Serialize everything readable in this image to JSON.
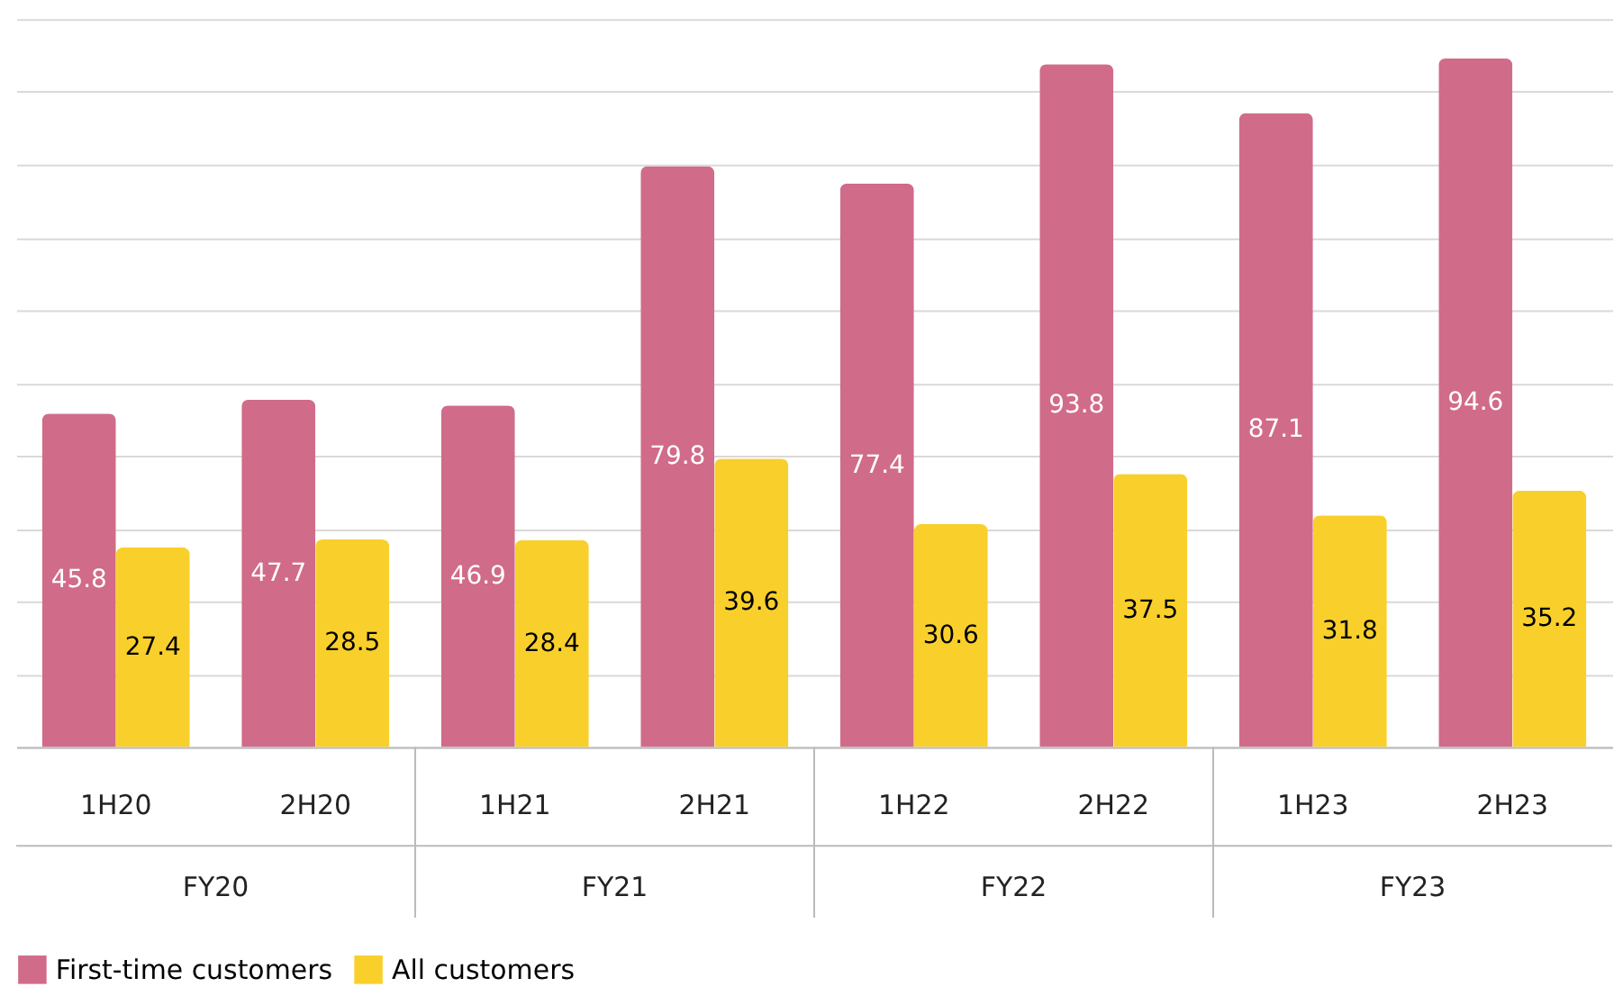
{
  "chart_data": {
    "type": "bar",
    "categories": [
      "1H20",
      "2H20",
      "1H21",
      "2H21",
      "1H22",
      "2H22",
      "1H23",
      "2H23"
    ],
    "series": [
      {
        "name": "First-time customers",
        "color": "#d16b8a",
        "values": [
          45.8,
          47.7,
          46.9,
          79.8,
          77.4,
          93.8,
          87.1,
          94.6
        ]
      },
      {
        "name": "All customers",
        "color": "#f9d02b",
        "values": [
          27.4,
          28.5,
          28.4,
          39.6,
          30.6,
          37.5,
          31.8,
          35.2
        ]
      }
    ],
    "annotations": [
      "FY20",
      "FY21",
      "FY22",
      "FY23"
    ],
    "ylim": [
      0,
      100
    ],
    "yticks": [
      {
        "value": 0,
        "label": null
      },
      {
        "value": 10,
        "label": null
      },
      {
        "value": 20,
        "label": null
      },
      {
        "value": 30,
        "label": null
      },
      {
        "value": 40,
        "label": null
      },
      {
        "value": 50,
        "label": null
      },
      {
        "value": 60,
        "label": null
      },
      {
        "value": 70,
        "label": null
      },
      {
        "value": 80,
        "label": null
      },
      {
        "value": 90,
        "label": null
      },
      {
        "value": 100,
        "label": null
      }
    ],
    "tick_labels": "x",
    "grid": "y",
    "data_labels": true,
    "legend": "bottom"
  }
}
